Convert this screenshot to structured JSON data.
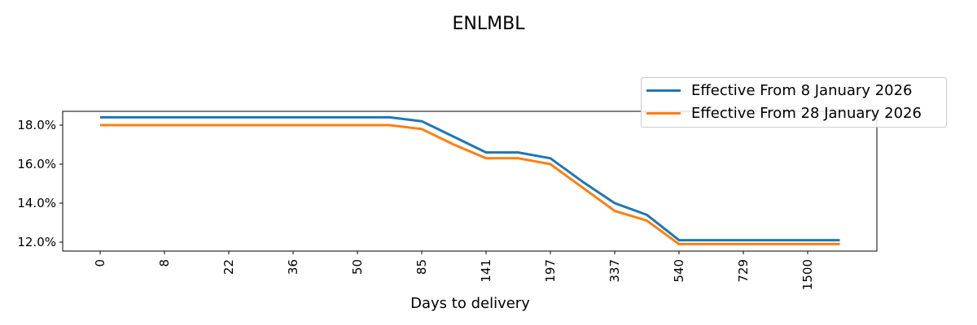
{
  "chart_data": {
    "type": "line",
    "title": "ENLMBL",
    "xlabel": "Days to delivery",
    "ylabel": "",
    "ylim": [
      11.55,
      18.7
    ],
    "yticks": [
      "12.0%",
      "14.0%",
      "16.0%",
      "18.0%"
    ],
    "xtick_labels": [
      "0",
      "8",
      "22",
      "36",
      "50",
      "85",
      "141",
      "197",
      "337",
      "540",
      "729",
      "1500"
    ],
    "x_index": [
      0,
      1,
      2,
      3,
      4,
      5,
      6,
      7,
      8,
      9,
      10,
      11,
      12,
      13,
      14,
      15,
      16,
      17,
      18,
      19,
      20,
      21,
      22,
      23
    ],
    "grid": false,
    "legend_position": "upper right (outside)",
    "series": [
      {
        "name": "Effective From 8 January 2026",
        "color": "#1f77b4",
        "values": [
          18.4,
          18.4,
          18.4,
          18.4,
          18.4,
          18.4,
          18.4,
          18.4,
          18.4,
          18.4,
          18.2,
          17.4,
          16.6,
          16.6,
          16.3,
          15.1,
          14.0,
          13.4,
          12.1,
          12.1,
          12.1,
          12.1,
          12.1,
          12.1
        ]
      },
      {
        "name": "Effective From 28 January 2026",
        "color": "#ff7f0e",
        "values": [
          18.0,
          18.0,
          18.0,
          18.0,
          18.0,
          18.0,
          18.0,
          18.0,
          18.0,
          18.0,
          17.8,
          17.0,
          16.3,
          16.3,
          16.0,
          14.8,
          13.6,
          13.1,
          11.9,
          11.9,
          11.9,
          11.9,
          11.9,
          11.9
        ]
      }
    ]
  }
}
